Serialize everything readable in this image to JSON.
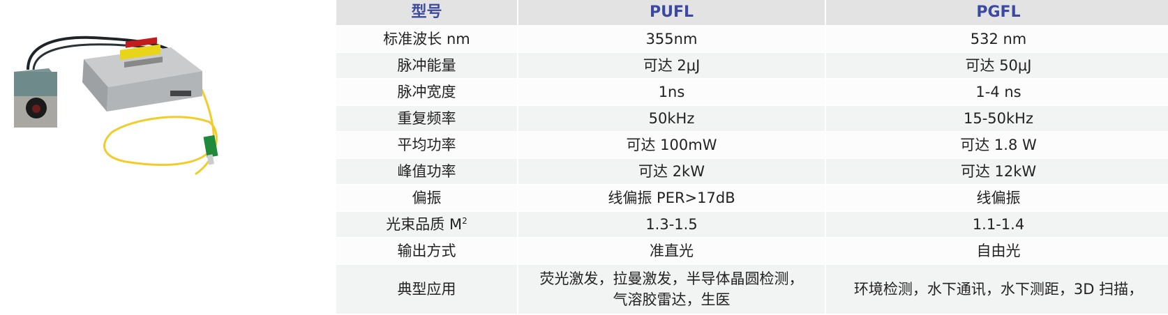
{
  "product_image": {
    "alt": "laser module with fiber",
    "fiber_color": "#f2cc2a"
  },
  "table": {
    "headers": [
      "型号",
      "PUFL",
      "PGFL"
    ],
    "header_color": "#3b4aa0",
    "rows": [
      {
        "label": "标准波长 nm",
        "pufl": "355nm",
        "pgfl": "532 nm"
      },
      {
        "label": "脉冲能量",
        "pufl": "可达 2μJ",
        "pgfl": "可达 50μJ"
      },
      {
        "label": "脉冲宽度",
        "pufl": "1ns",
        "pgfl": "1-4 ns"
      },
      {
        "label": "重复频率",
        "pufl": "50kHz",
        "pgfl": "15-50kHz"
      },
      {
        "label": "平均功率",
        "pufl": "可达 100mW",
        "pgfl": "可达 1.8 W"
      },
      {
        "label": "峰值功率",
        "pufl": "可达 2kW",
        "pgfl": "可达 12kW"
      },
      {
        "label": "偏振",
        "pufl": "线偏振 PER>17dB",
        "pgfl": "线偏振"
      },
      {
        "label": "光束品质 M",
        "label_sup": "2",
        "pufl": "1.3-1.5",
        "pgfl": "1.1-1.4"
      },
      {
        "label": "输出方式",
        "pufl": "准直光",
        "pgfl": "自由光"
      },
      {
        "label": "典型应用",
        "pufl": "荧光激发，拉曼激发，半导体晶圆检测，气溶胶雷达，生医",
        "pgfl": "环境检测，水下通讯，水下测距，3D 扫描，"
      }
    ]
  }
}
